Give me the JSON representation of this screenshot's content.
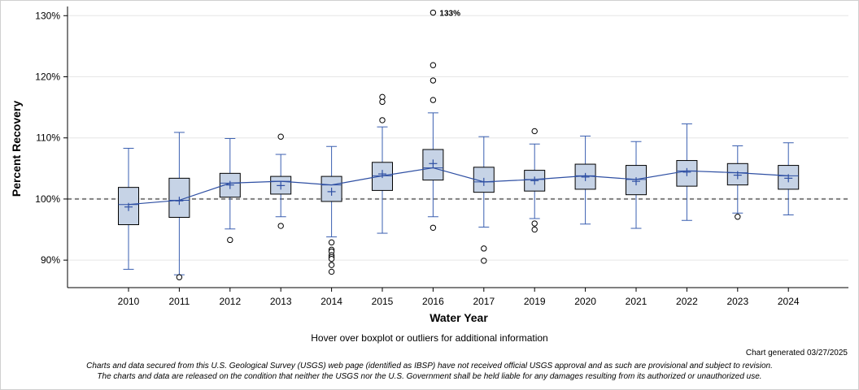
{
  "chart_data": {
    "type": "boxplot",
    "title": "",
    "xlabel": "Water Year",
    "ylabel": "Percent Recovery",
    "ylim": [
      85.5,
      131.5
    ],
    "y_ticks": [
      90,
      100,
      110,
      120,
      130
    ],
    "y_tick_labels": [
      "90%",
      "100%",
      "110%",
      "120%",
      "130%"
    ],
    "reference_line": 100,
    "grid": true,
    "categories": [
      "2010",
      "2011",
      "2012",
      "2013",
      "2014",
      "2015",
      "2016",
      "2017",
      "2019",
      "2020",
      "2021",
      "2022",
      "2023",
      "2024"
    ],
    "series": [
      {
        "name": "2010",
        "whisker_low": 88.5,
        "q1": 95.8,
        "median": 99.1,
        "q3": 101.9,
        "whisker_high": 108.3,
        "mean": 98.7,
        "outliers": []
      },
      {
        "name": "2011",
        "whisker_low": 87.6,
        "q1": 97.0,
        "median": 99.8,
        "q3": 103.4,
        "whisker_high": 110.9,
        "mean": 99.7,
        "outliers": [
          87.2
        ]
      },
      {
        "name": "2012",
        "whisker_low": 95.1,
        "q1": 100.3,
        "median": 102.6,
        "q3": 104.2,
        "whisker_high": 109.9,
        "mean": 102.3,
        "outliers": [
          93.3
        ]
      },
      {
        "name": "2013",
        "whisker_low": 97.1,
        "q1": 100.8,
        "median": 102.9,
        "q3": 103.7,
        "whisker_high": 107.3,
        "mean": 102.2,
        "outliers": [
          110.2,
          95.6
        ]
      },
      {
        "name": "2014",
        "whisker_low": 93.8,
        "q1": 99.6,
        "median": 102.3,
        "q3": 103.7,
        "whisker_high": 108.6,
        "mean": 101.2,
        "outliers": [
          92.9,
          91.7,
          91.4,
          90.8,
          90.5,
          90.2,
          89.2,
          88.1
        ]
      },
      {
        "name": "2015",
        "whisker_low": 94.4,
        "q1": 101.4,
        "median": 103.8,
        "q3": 106.0,
        "whisker_high": 111.8,
        "mean": 104.1,
        "outliers": [
          116.7,
          115.9,
          112.9
        ]
      },
      {
        "name": "2016",
        "whisker_low": 97.1,
        "q1": 103.1,
        "median": 105.1,
        "q3": 108.1,
        "whisker_high": 114.1,
        "mean": 105.8,
        "outliers": [
          133,
          121.9,
          119.4,
          116.2,
          95.3
        ]
      },
      {
        "name": "2017",
        "whisker_low": 95.4,
        "q1": 101.1,
        "median": 102.8,
        "q3": 105.2,
        "whisker_high": 110.2,
        "mean": 102.8,
        "outliers": [
          91.9,
          89.9
        ]
      },
      {
        "name": "2019",
        "whisker_low": 96.8,
        "q1": 101.3,
        "median": 103.2,
        "q3": 104.7,
        "whisker_high": 109.0,
        "mean": 103.0,
        "outliers": [
          111.1,
          96.0,
          95.0
        ]
      },
      {
        "name": "2020",
        "whisker_low": 95.9,
        "q1": 101.6,
        "median": 103.8,
        "q3": 105.7,
        "whisker_high": 110.3,
        "mean": 103.6,
        "outliers": []
      },
      {
        "name": "2021",
        "whisker_low": 95.2,
        "q1": 100.7,
        "median": 103.2,
        "q3": 105.5,
        "whisker_high": 109.4,
        "mean": 102.9,
        "outliers": []
      },
      {
        "name": "2022",
        "whisker_low": 96.5,
        "q1": 102.1,
        "median": 104.6,
        "q3": 106.3,
        "whisker_high": 112.3,
        "mean": 104.4,
        "outliers": []
      },
      {
        "name": "2023",
        "whisker_low": 97.7,
        "q1": 102.3,
        "median": 104.3,
        "q3": 105.8,
        "whisker_high": 108.7,
        "mean": 103.9,
        "outliers": [
          97.1
        ]
      },
      {
        "name": "2024",
        "whisker_low": 97.4,
        "q1": 101.6,
        "median": 103.8,
        "q3": 105.5,
        "whisker_high": 109.2,
        "mean": 103.4,
        "outliers": []
      }
    ],
    "labeled_outlier": {
      "category": "2016",
      "value": 133,
      "label": "133%"
    },
    "median_line_connects_boxes": true
  },
  "footer": {
    "hover_note": "Hover over boxplot or outliers for additional information",
    "generated": "Chart generated 03/27/2025",
    "disclaimer_line1": "Charts and data secured from this U.S. Geological Survey (USGS) web page (identified as IBSP) have not received official USGS approval and as such are provisional and subject to revision.",
    "disclaimer_line2": "The charts and data are released on the condition that neither the USGS nor the U.S. Government shall be held liable for any damages resulting from its authorized or unauthorized use."
  },
  "colors": {
    "box_fill": "#c6d3e6",
    "box_stroke": "#000000",
    "whisker": "#3a5fb0",
    "mean_marker": "#2e4fa3",
    "median_line": "#2e4fa3",
    "reference_line": "#808080",
    "grid": "#e6e6e6"
  }
}
